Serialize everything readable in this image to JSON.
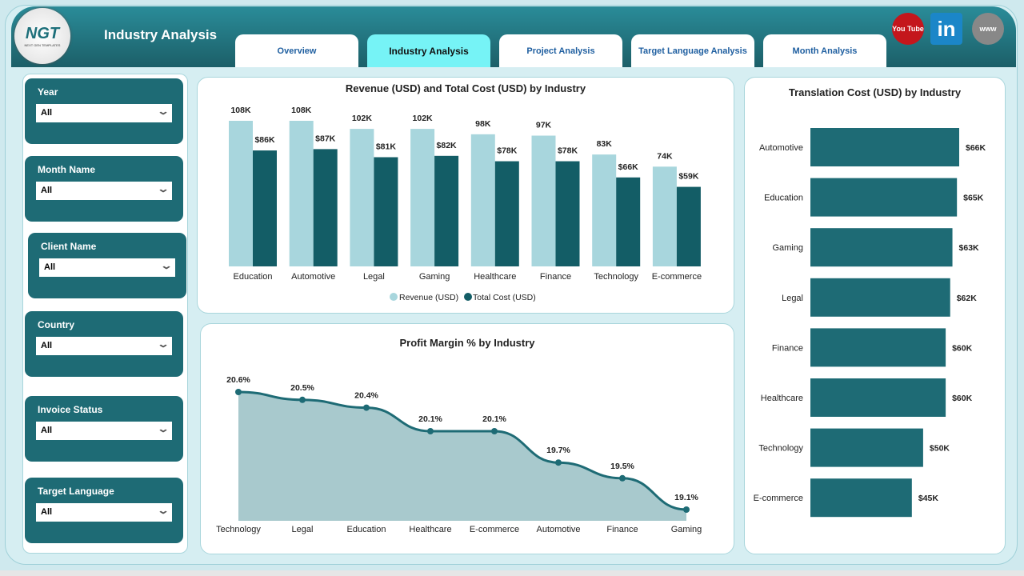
{
  "header": {
    "title": "Industry Analysis",
    "logo_text": "NGT",
    "logo_sub": "NEXT GEN TEMPLATES",
    "tabs": [
      {
        "label": "Overview",
        "active": false
      },
      {
        "label": "Industry Analysis",
        "active": true
      },
      {
        "label": "Project Analysis",
        "active": false
      },
      {
        "label": "Target Language Analysis",
        "active": false
      },
      {
        "label": "Month Analysis",
        "active": false
      }
    ],
    "social": [
      {
        "icon": "youtube-icon",
        "label": "You Tube",
        "color": "#c4161c"
      },
      {
        "icon": "linkedin-icon",
        "label": "in",
        "color": "#1b86c8"
      },
      {
        "icon": "globe-icon",
        "label": "www",
        "color": "#888888"
      }
    ]
  },
  "slicers": [
    {
      "label": "Year",
      "value": "All"
    },
    {
      "label": "Month Name",
      "value": "All"
    },
    {
      "label": "Client Name",
      "value": "All"
    },
    {
      "label": "Country",
      "value": "All"
    },
    {
      "label": "Invoice Status",
      "value": "All"
    },
    {
      "label": "Target Language",
      "value": "All"
    }
  ],
  "colors": {
    "light": "#a8d6dd",
    "dark": "#135d66",
    "bar": "#1e6b75",
    "area": "#a8c9cd",
    "line": "#1e6b75"
  },
  "chart_data": [
    {
      "type": "bar",
      "title": "Revenue (USD) and Total Cost (USD) by Industry",
      "categories": [
        "Education",
        "Automotive",
        "Legal",
        "Gaming",
        "Healthcare",
        "Finance",
        "Technology",
        "E-commerce"
      ],
      "series": [
        {
          "name": "Revenue (USD)",
          "values": [
            108,
            108,
            102,
            102,
            98,
            97,
            83,
            74
          ],
          "labels": [
            "108K",
            "108K",
            "102K",
            "102K",
            "98K",
            "97K",
            "83K",
            "74K"
          ]
        },
        {
          "name": "Total Cost (USD)",
          "values": [
            86,
            87,
            81,
            82,
            78,
            78,
            66,
            59
          ],
          "labels": [
            "$86K",
            "$87K",
            "$81K",
            "$82K",
            "$78K",
            "$78K",
            "$66K",
            "$59K"
          ]
        }
      ],
      "legend": "bottom"
    },
    {
      "type": "area",
      "title": "Profit Margin % by Industry",
      "categories": [
        "Technology",
        "Legal",
        "Education",
        "Healthcare",
        "E-commerce",
        "Automotive",
        "Finance",
        "Gaming"
      ],
      "values": [
        20.6,
        20.5,
        20.4,
        20.1,
        20.1,
        19.7,
        19.5,
        19.1
      ],
      "labels": [
        "20.6%",
        "20.5%",
        "20.4%",
        "20.1%",
        "20.1%",
        "19.7%",
        "19.5%",
        "19.1%"
      ]
    },
    {
      "type": "bar",
      "orientation": "horizontal",
      "title": "Translation Cost (USD) by Industry",
      "categories": [
        "Automotive",
        "Education",
        "Gaming",
        "Legal",
        "Finance",
        "Healthcare",
        "Technology",
        "E-commerce"
      ],
      "values": [
        66,
        65,
        63,
        62,
        60,
        60,
        50,
        45
      ],
      "labels": [
        "$66K",
        "$65K",
        "$63K",
        "$62K",
        "$60K",
        "$60K",
        "$50K",
        "$45K"
      ]
    }
  ]
}
